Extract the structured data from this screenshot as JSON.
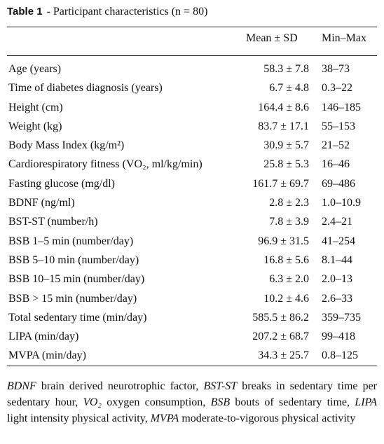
{
  "caption": {
    "label": "Table 1",
    "title": "- Participant characteristics (n = 80)"
  },
  "header": {
    "mean_sd": "Mean ± SD",
    "min_max": "Min–Max"
  },
  "rows": [
    {
      "label": "Age (years)",
      "mean_sd": "58.3 ± 7.8",
      "min_max": "38–73"
    },
    {
      "label": "Time of diabetes diagnosis (years)",
      "mean_sd": "6.7 ± 4.8",
      "min_max": "0.3–22"
    },
    {
      "label": "Height (cm)",
      "mean_sd": "164.4 ± 8.6",
      "min_max": "146–185"
    },
    {
      "label": "Weight (kg)",
      "mean_sd": "83.7 ± 17.1",
      "min_max": "55–153"
    },
    {
      "label": "Body Mass Index (kg/m²)",
      "mean_sd": "30.9 ± 5.7",
      "min_max": "21–52"
    },
    {
      "label": "Cardiorespiratory fitness (VO₂, ml/kg/min)",
      "mean_sd": "25.8 ± 5.3",
      "min_max": "16–46"
    },
    {
      "label": "Fasting glucose (mg/dl)",
      "mean_sd": "161.7 ± 69.7",
      "min_max": "69–486"
    },
    {
      "label": "BDNF (ng/ml)",
      "mean_sd": "2.8 ± 2.3",
      "min_max": "1.0–10.9"
    },
    {
      "label": "BST-ST (number/h)",
      "mean_sd": "7.8 ± 3.9",
      "min_max": "2.4–21"
    },
    {
      "label": "BSB 1–5 min (number/day)",
      "mean_sd": "96.9 ± 31.5",
      "min_max": "41–254"
    },
    {
      "label": "BSB 5–10 min (number/day)",
      "mean_sd": "16.8 ± 5.6",
      "min_max": "8.1–44"
    },
    {
      "label": "BSB 10–15 min (number/day)",
      "mean_sd": "6.3 ± 2.0",
      "min_max": "2.0–13"
    },
    {
      "label": "BSB > 15 min (number/day)",
      "mean_sd": "10.2 ± 4.6",
      "min_max": "2.6–33"
    },
    {
      "label": "Total sedentary time (min/day)",
      "mean_sd": "585.5 ± 86.2",
      "min_max": "359–735"
    },
    {
      "label": "LIPA (min/day)",
      "mean_sd": "207.2 ± 68.7",
      "min_max": "99–418"
    },
    {
      "label": "MVPA (min/day)",
      "mean_sd": "34.3 ± 25.7",
      "min_max": "0.8–125"
    }
  ],
  "footnote": [
    {
      "abbr": "BDNF",
      "text": " brain derived neurotrophic factor, "
    },
    {
      "abbr": "BST-ST",
      "text": " breaks in sedentary time per sedentary hour, "
    },
    {
      "abbr": "VO₂",
      "text": " oxygen consumption, "
    },
    {
      "abbr": "BSB",
      "text": " bouts of sedentary time, "
    },
    {
      "abbr": "LIPA",
      "text": " light intensity physical activity, "
    },
    {
      "abbr": "MVPA",
      "text": " moderate-to-vigorous physical activity"
    }
  ]
}
